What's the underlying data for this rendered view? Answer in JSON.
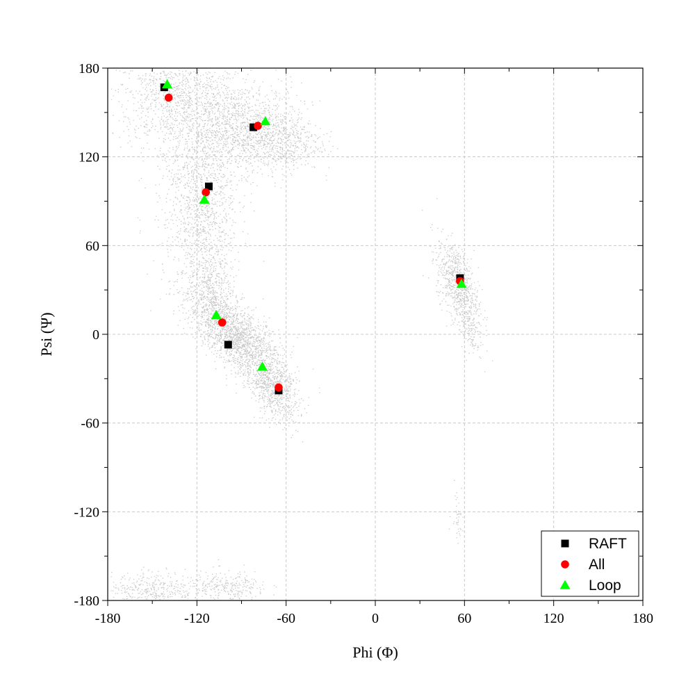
{
  "chart_data": {
    "type": "scatter",
    "xlabel": "Phi (Φ)",
    "ylabel": "Psi (Ψ)",
    "xlim": [
      -180,
      180
    ],
    "ylim": [
      -180,
      180
    ],
    "x_ticks": [
      -180,
      -120,
      -60,
      0,
      60,
      120,
      180
    ],
    "y_ticks": [
      180,
      120,
      60,
      0,
      -60,
      -120,
      -180
    ],
    "grid": true,
    "legend_position": "bottom-right",
    "background_density": {
      "description": "grey point cloud",
      "color": "#bdbdbd"
    },
    "series": [
      {
        "name": "RAFT",
        "marker": "square",
        "color": "#000000",
        "points": [
          {
            "x": -142,
            "y": 167
          },
          {
            "x": -82,
            "y": 140
          },
          {
            "x": -112,
            "y": 100
          },
          {
            "x": -99,
            "y": -7
          },
          {
            "x": -65,
            "y": -38
          },
          {
            "x": 57,
            "y": 38
          }
        ]
      },
      {
        "name": "All",
        "marker": "circle",
        "color": "#ff0000",
        "points": [
          {
            "x": -139,
            "y": 160
          },
          {
            "x": -79,
            "y": 141
          },
          {
            "x": -114,
            "y": 96
          },
          {
            "x": -103,
            "y": 8
          },
          {
            "x": -65,
            "y": -36
          },
          {
            "x": 57,
            "y": 36
          }
        ]
      },
      {
        "name": "Loop",
        "marker": "triangle",
        "color": "#00ff00",
        "points": [
          {
            "x": -140,
            "y": 169
          },
          {
            "x": -74,
            "y": 144
          },
          {
            "x": -115,
            "y": 91
          },
          {
            "x": -107,
            "y": 13
          },
          {
            "x": -76,
            "y": -22
          },
          {
            "x": 58,
            "y": 34
          }
        ]
      }
    ]
  }
}
